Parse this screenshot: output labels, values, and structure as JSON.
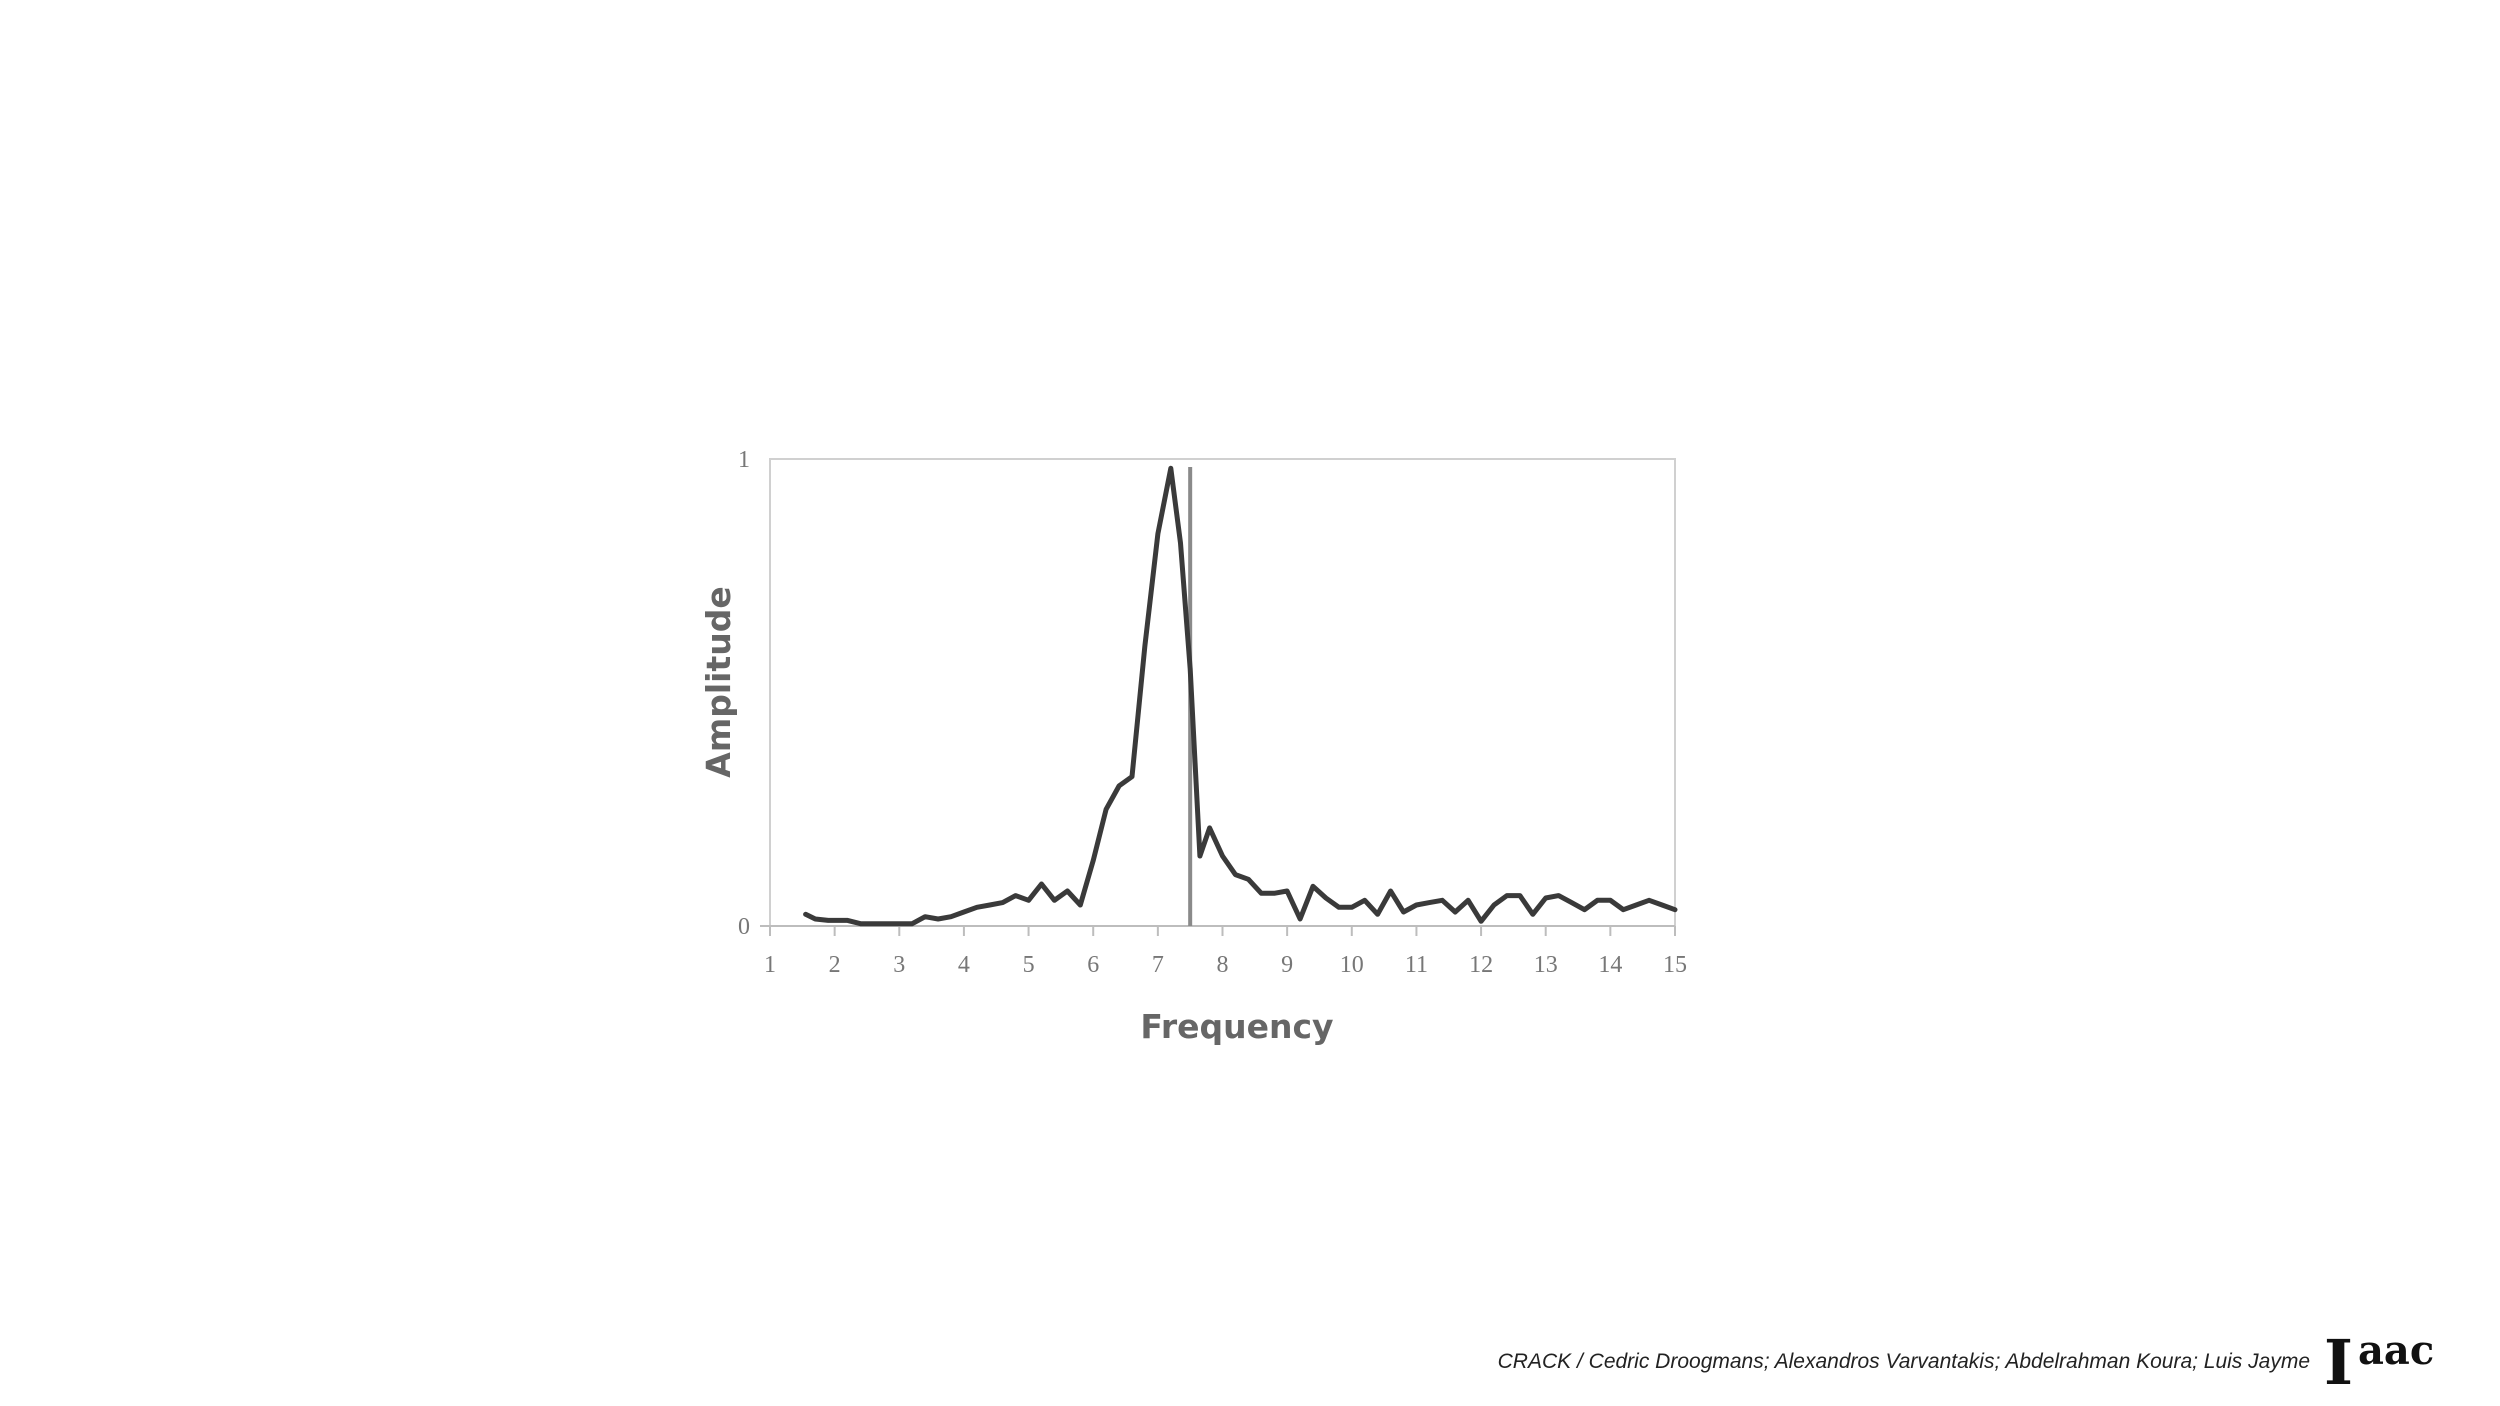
{
  "chart_data": {
    "type": "line",
    "xlabel": "Frequency",
    "ylabel": "Amplitude",
    "xlim": [
      1,
      15
    ],
    "ylim": [
      0,
      1
    ],
    "x_ticks": [
      "1",
      "2",
      "3",
      "4",
      "5",
      "6",
      "7",
      "8",
      "9",
      "10",
      "11",
      "12",
      "13",
      "14",
      "15"
    ],
    "y_ticks": [
      "0",
      "1"
    ],
    "grid": false,
    "marker_line_x": 7.5,
    "series": [
      {
        "x": [
          1.55,
          1.7,
          1.9,
          2.2,
          2.4,
          2.7,
          3.0,
          3.2,
          3.4,
          3.6,
          3.8,
          4.0,
          4.2,
          4.4,
          4.6,
          4.8,
          5.0,
          5.2,
          5.4,
          5.6,
          5.8,
          6.0,
          6.2,
          6.4,
          6.6,
          6.8,
          7.0,
          7.2,
          7.35,
          7.5,
          7.65,
          7.8,
          8.0,
          8.2,
          8.4,
          8.6,
          8.8,
          9.0,
          9.2,
          9.4,
          9.6,
          9.8,
          10.0,
          10.2,
          10.4,
          10.6,
          10.8,
          11.0,
          11.2,
          11.4,
          11.6,
          11.8,
          12.0,
          12.2,
          12.4,
          12.6,
          12.8,
          13.0,
          13.2,
          13.4,
          13.6,
          13.8,
          14.0,
          14.2,
          14.4,
          14.6,
          14.8,
          15.0
        ],
        "values": [
          0.025,
          0.015,
          0.012,
          0.012,
          0.005,
          0.005,
          0.005,
          0.005,
          0.02,
          0.015,
          0.02,
          0.03,
          0.04,
          0.045,
          0.05,
          0.065,
          0.055,
          0.09,
          0.055,
          0.075,
          0.045,
          0.14,
          0.25,
          0.3,
          0.32,
          0.6,
          0.84,
          0.98,
          0.82,
          0.55,
          0.15,
          0.21,
          0.15,
          0.11,
          0.1,
          0.07,
          0.07,
          0.075,
          0.015,
          0.085,
          0.06,
          0.04,
          0.04,
          0.055,
          0.025,
          0.075,
          0.03,
          0.045,
          0.05,
          0.055,
          0.03,
          0.055,
          0.01,
          0.045,
          0.065,
          0.065,
          0.025,
          0.06,
          0.065,
          0.05,
          0.035,
          0.055,
          0.055,
          0.035,
          0.045,
          0.055,
          0.045,
          0.035
        ]
      }
    ]
  },
  "footer": {
    "credit": "CRACK / Cedric Droogmans; Alexandros Varvantakis; Abdelrahman Koura; Luis Jayme"
  },
  "logo": {
    "text_main": "I",
    "text_sup": "aac"
  }
}
